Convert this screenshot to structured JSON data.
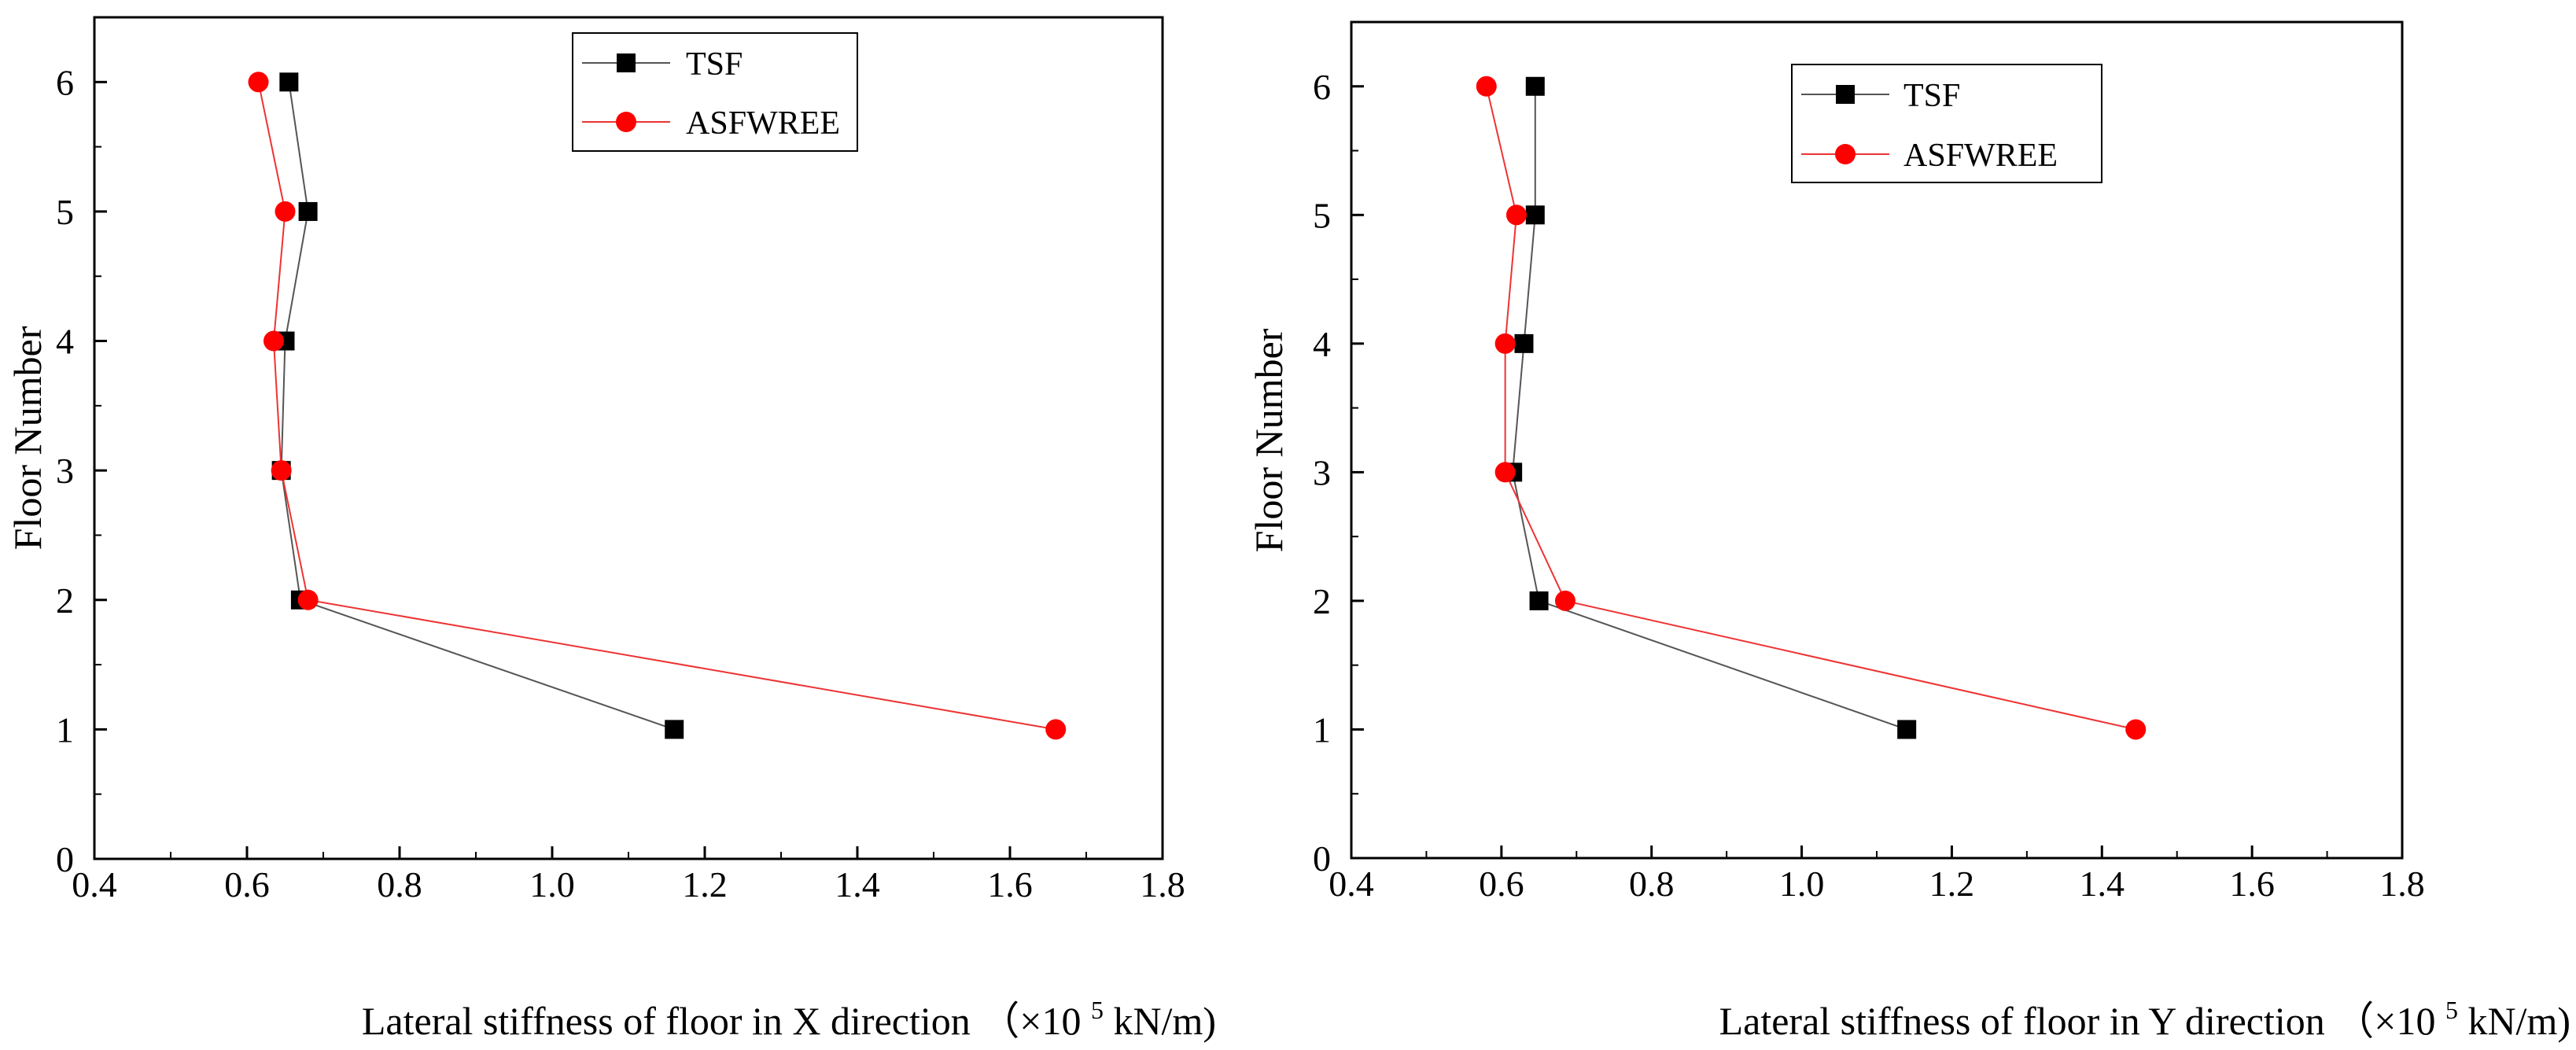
{
  "colors": {
    "tsf": "#000000",
    "tsf_line": "#555555",
    "asfwree": "#ff0000",
    "asfwree_line": "#ee3333",
    "axis": "#000000"
  },
  "chart_data": [
    {
      "type": "line",
      "xlabel": "Lateral stiffness of floor in X direction",
      "xlabel_unit_prefix": "（×10",
      "xlabel_unit_exp": "5",
      "xlabel_unit_suffix": " kN/m)",
      "ylabel": "Floor Number",
      "xlim": [
        0.4,
        1.8
      ],
      "ylim": [
        0,
        6.5
      ],
      "xticks": [
        0.4,
        0.6,
        0.8,
        1.0,
        1.2,
        1.4,
        1.6,
        1.8
      ],
      "xtick_labels": [
        "0.4",
        "0.6",
        "0.8",
        "1.0",
        "1.2",
        "1.4",
        "1.6",
        "1.8"
      ],
      "yticks": [
        0,
        1,
        2,
        3,
        4,
        5,
        6
      ],
      "ytick_labels": [
        "0",
        "1",
        "2",
        "3",
        "4",
        "5",
        "6"
      ],
      "legend_position": "top-right",
      "grid": false,
      "series": [
        {
          "name": "TSF",
          "marker": "square",
          "x": [
            1.16,
            0.67,
            0.645,
            0.65,
            0.68,
            0.655
          ],
          "y": [
            1,
            2,
            3,
            4,
            5,
            6
          ]
        },
        {
          "name": "ASFWREE",
          "marker": "circle",
          "x": [
            1.66,
            0.68,
            0.645,
            0.635,
            0.65,
            0.615
          ],
          "y": [
            1,
            2,
            3,
            4,
            5,
            6
          ]
        }
      ]
    },
    {
      "type": "line",
      "xlabel": "Lateral stiffness of floor in Y direction",
      "xlabel_unit_prefix": "（×10",
      "xlabel_unit_exp": "5",
      "xlabel_unit_suffix": " kN/m)",
      "ylabel": "Floor Number",
      "xlim": [
        0.4,
        1.8
      ],
      "ylim": [
        0,
        6.5
      ],
      "xticks": [
        0.4,
        0.6,
        0.8,
        1.0,
        1.2,
        1.4,
        1.6,
        1.8
      ],
      "xtick_labels": [
        "0.4",
        "0.6",
        "0.8",
        "1.0",
        "1.2",
        "1.4",
        "1.6",
        "1.8"
      ],
      "yticks": [
        0,
        1,
        2,
        3,
        4,
        5,
        6
      ],
      "ytick_labels": [
        "0",
        "1",
        "2",
        "3",
        "4",
        "5",
        "6"
      ],
      "legend_position": "top-right",
      "grid": false,
      "series": [
        {
          "name": "TSF",
          "marker": "square",
          "x": [
            1.14,
            0.65,
            0.615,
            0.63,
            0.645,
            0.645
          ],
          "y": [
            1,
            2,
            3,
            4,
            5,
            6
          ]
        },
        {
          "name": "ASFWREE",
          "marker": "circle",
          "x": [
            1.445,
            0.685,
            0.605,
            0.605,
            0.62,
            0.58
          ],
          "y": [
            1,
            2,
            3,
            4,
            5,
            6
          ]
        }
      ]
    }
  ]
}
